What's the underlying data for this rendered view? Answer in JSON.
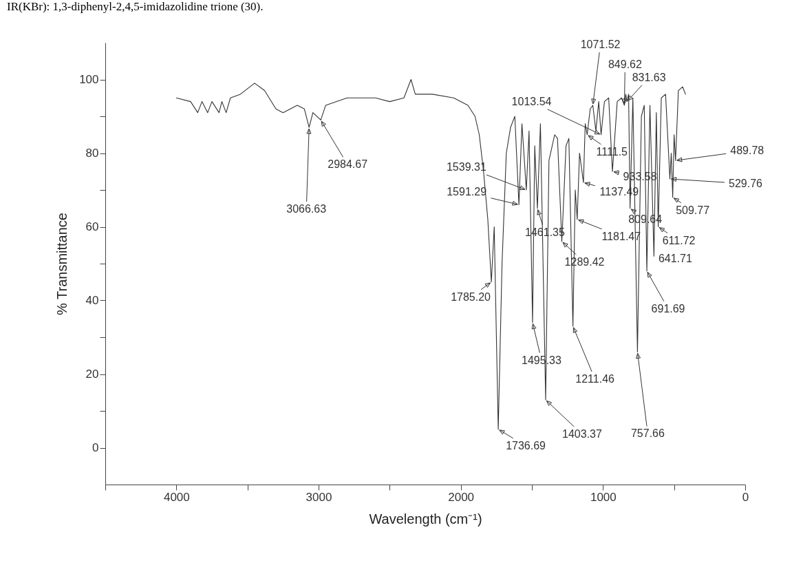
{
  "chart_data": {
    "type": "line",
    "title": "IR(KBr): 1,3-diphenyl-2,4,5-imidazolidine trione (30).",
    "xlabel": "Wavelength (cm⁻¹)",
    "ylabel": "% Transmittance",
    "xlim": [
      4500,
      0
    ],
    "xticks": [
      {
        "value": 4500,
        "label": null
      },
      4000,
      {
        "value": 3500,
        "label": null
      },
      3000,
      {
        "value": 2500,
        "label": null
      },
      2000,
      {
        "value": 1500,
        "label": null
      },
      1000,
      {
        "value": 500,
        "label": null
      },
      0
    ],
    "ylim": [
      -10,
      110
    ],
    "yticks": [
      0,
      {
        "value": 10,
        "label": null
      },
      20,
      {
        "value": 30,
        "label": null
      },
      40,
      {
        "value": 50,
        "label": null
      },
      60,
      {
        "value": 70,
        "label": null
      },
      80,
      {
        "value": 90,
        "label": null
      },
      100
    ],
    "grid": false,
    "marker": "none",
    "line_style": "solid",
    "series": [
      {
        "color": "#333333",
        "x": [
          4000,
          3900,
          3850,
          3820,
          3780,
          3750,
          3700,
          3680,
          3650,
          3620,
          3550,
          3450,
          3380,
          3300,
          3250,
          3150,
          3100,
          3066.63,
          3040,
          2984.67,
          2950,
          2800,
          2600,
          2500,
          2400,
          2350,
          2320,
          2200,
          2050,
          1950,
          1900,
          1870,
          1840,
          1810,
          1785.2,
          1765,
          1736.69,
          1710,
          1680,
          1650,
          1620,
          1591.29,
          1570,
          1539.31,
          1520,
          1495.33,
          1480,
          1461.35,
          1440,
          1403.37,
          1380,
          1340,
          1320,
          1289.42,
          1260,
          1240,
          1211.46,
          1195,
          1181.47,
          1165,
          1137.49,
          1125,
          1111.5,
          1090,
          1071.52,
          1050,
          1030,
          1013.54,
          990,
          960,
          933.58,
          900,
          870,
          849.62,
          840,
          831.63,
          820,
          809.64,
          790,
          757.66,
          730,
          710,
          691.69,
          670,
          641.71,
          625,
          611.72,
          590,
          560,
          529.76,
          520,
          509.77,
          500,
          489.78,
          470,
          440,
          420
        ],
        "values": [
          95,
          94,
          91,
          94,
          91,
          94,
          91,
          94,
          91,
          95,
          96,
          99,
          97,
          92,
          91,
          93,
          92,
          87,
          91,
          89,
          93,
          95,
          95,
          94,
          95,
          100,
          96,
          96,
          95,
          93,
          90,
          85,
          75,
          62,
          45,
          60,
          5,
          50,
          80,
          87,
          90,
          66,
          88,
          70,
          86,
          34,
          82,
          65,
          88,
          13,
          78,
          85,
          84,
          56,
          82,
          84,
          33,
          70,
          62,
          80,
          72,
          88,
          85,
          92,
          93,
          86,
          94,
          85,
          94,
          95,
          75,
          94,
          95,
          93,
          96,
          94,
          96,
          65,
          95,
          26,
          90,
          93,
          48,
          93,
          52,
          91,
          60,
          95,
          96,
          73,
          80,
          68,
          85,
          78,
          97,
          98,
          96
        ]
      }
    ],
    "annotations": [
      {
        "text": "3066.63",
        "x": 3066.63,
        "y": 87
      },
      {
        "text": "2984.67",
        "x": 2984.67,
        "y": 89
      },
      {
        "text": "1785.20",
        "x": 1785.2,
        "y": 45
      },
      {
        "text": "1736.69",
        "x": 1736.69,
        "y": 5
      },
      {
        "text": "1591.29",
        "x": 1591.29,
        "y": 66
      },
      {
        "text": "1539.31",
        "x": 1539.31,
        "y": 70
      },
      {
        "text": "1495.33",
        "x": 1495.33,
        "y": 34
      },
      {
        "text": "1461.35",
        "x": 1461.35,
        "y": 65
      },
      {
        "text": "1403.37",
        "x": 1403.37,
        "y": 13
      },
      {
        "text": "1289.42",
        "x": 1289.42,
        "y": 56
      },
      {
        "text": "1211.46",
        "x": 1211.46,
        "y": 33
      },
      {
        "text": "1181.47",
        "x": 1181.47,
        "y": 62
      },
      {
        "text": "1137.49",
        "x": 1137.49,
        "y": 72
      },
      {
        "text": "1111.5",
        "x": 1111.5,
        "y": 85
      },
      {
        "text": "1071.52",
        "x": 1071.52,
        "y": 93
      },
      {
        "text": "1013.54",
        "x": 1013.54,
        "y": 85
      },
      {
        "text": "933.58",
        "x": 933.58,
        "y": 75
      },
      {
        "text": "849.62",
        "x": 849.62,
        "y": 93
      },
      {
        "text": "831.63",
        "x": 831.63,
        "y": 94
      },
      {
        "text": "809.64",
        "x": 809.64,
        "y": 65
      },
      {
        "text": "757.66",
        "x": 757.66,
        "y": 26
      },
      {
        "text": "691.69",
        "x": 691.69,
        "y": 48
      },
      {
        "text": "641.71",
        "x": 641.71,
        "y": 52
      },
      {
        "text": "611.72",
        "x": 611.72,
        "y": 60
      },
      {
        "text": "529.76",
        "x": 529.76,
        "y": 73
      },
      {
        "text": "509.77",
        "x": 509.77,
        "y": 68
      },
      {
        "text": "489.78",
        "x": 489.78,
        "y": 78
      }
    ]
  }
}
